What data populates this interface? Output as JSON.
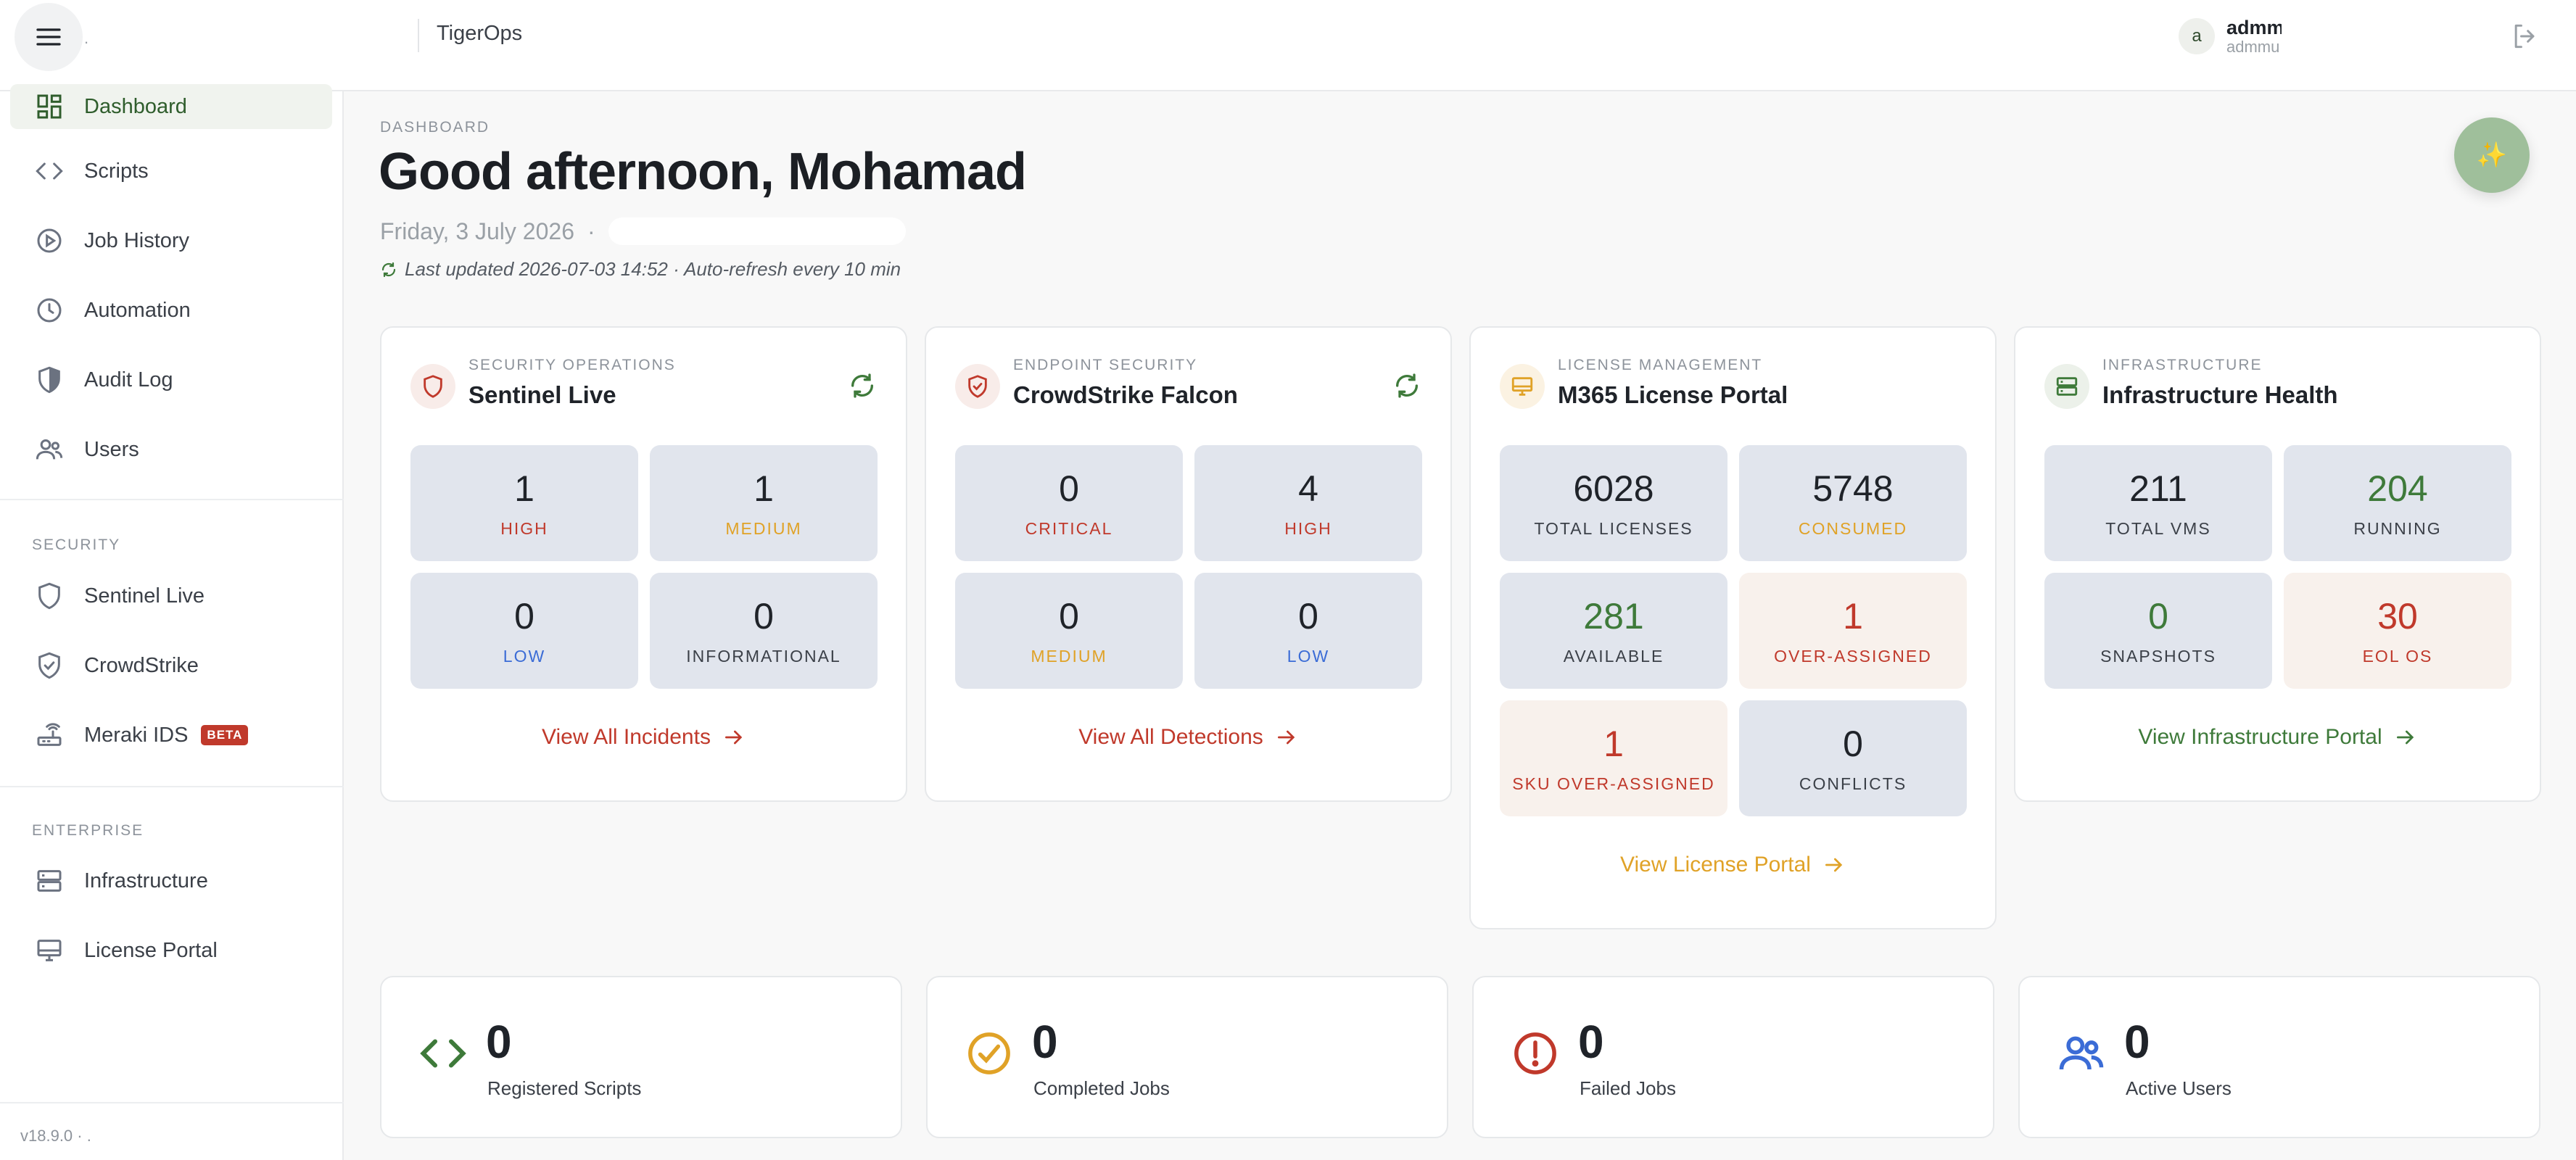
{
  "topbar": {
    "brand_mark": ".",
    "app_name": "TigerOps",
    "user": {
      "avatar_initial": "a",
      "name": "admm",
      "sub": "admmu"
    }
  },
  "sidebar": {
    "items": [
      {
        "label": "Dashboard",
        "icon": "dashboard-icon",
        "active": true
      },
      {
        "label": "Scripts",
        "icon": "code-icon"
      },
      {
        "label": "Job History",
        "icon": "play-circle-icon"
      },
      {
        "label": "Automation",
        "icon": "clock-icon"
      },
      {
        "label": "Audit Log",
        "icon": "shield-half-icon"
      },
      {
        "label": "Users",
        "icon": "users-icon"
      }
    ],
    "security_heading": "SECURITY",
    "security_items": [
      {
        "label": "Sentinel Live",
        "icon": "shield-icon"
      },
      {
        "label": "CrowdStrike",
        "icon": "shield-check-icon"
      },
      {
        "label": "Meraki IDS",
        "icon": "router-icon",
        "badge": "BETA"
      }
    ],
    "enterprise_heading": "ENTERPRISE",
    "enterprise_items": [
      {
        "label": "Infrastructure",
        "icon": "server-icon"
      },
      {
        "label": "License Portal",
        "icon": "monitor-icon"
      }
    ],
    "footer": "v18.9.0 · ."
  },
  "main": {
    "breadcrumb": "DASHBOARD",
    "greeting": "Good afternoon, Mohamad",
    "date": "Friday, 3 July 2026",
    "date_sep": "·",
    "updated": "Last updated 2026-07-03 14:52 · Auto-refresh every 10 min"
  },
  "cards": {
    "sentinel": {
      "kicker": "SECURITY OPERATIONS",
      "title": "Sentinel Live",
      "tiles": [
        {
          "value": "1",
          "label": "HIGH"
        },
        {
          "value": "1",
          "label": "MEDIUM"
        },
        {
          "value": "0",
          "label": "LOW"
        },
        {
          "value": "0",
          "label": "INFORMATIONAL"
        }
      ],
      "link": "View All Incidents"
    },
    "crowdstrike": {
      "kicker": "ENDPOINT SECURITY",
      "title": "CrowdStrike Falcon",
      "tiles": [
        {
          "value": "0",
          "label": "CRITICAL"
        },
        {
          "value": "4",
          "label": "HIGH"
        },
        {
          "value": "0",
          "label": "MEDIUM"
        },
        {
          "value": "0",
          "label": "LOW"
        }
      ],
      "link": "View All Detections"
    },
    "license": {
      "kicker": "LICENSE MANAGEMENT",
      "title": "M365 License Portal",
      "tiles": [
        {
          "value": "6028",
          "label": "TOTAL LICENSES"
        },
        {
          "value": "5748",
          "label": "CONSUMED"
        },
        {
          "value": "281",
          "label": "AVAILABLE"
        },
        {
          "value": "1",
          "label": "OVER-ASSIGNED"
        },
        {
          "value": "1",
          "label": "SKU OVER-ASSIGNED"
        },
        {
          "value": "0",
          "label": "CONFLICTS"
        }
      ],
      "link": "View License Portal"
    },
    "infra": {
      "kicker": "INFRASTRUCTURE",
      "title": "Infrastructure Health",
      "tiles": [
        {
          "value": "211",
          "label": "TOTAL VMS"
        },
        {
          "value": "204",
          "label": "RUNNING"
        },
        {
          "value": "0",
          "label": "SNAPSHOTS"
        },
        {
          "value": "30",
          "label": "EOL OS"
        }
      ],
      "link": "View Infrastructure Portal"
    }
  },
  "stats": [
    {
      "value": "0",
      "label": "Registered Scripts",
      "icon": "code-icon",
      "color": "#3e7a3a"
    },
    {
      "value": "0",
      "label": "Completed Jobs",
      "icon": "check-circle-icon",
      "color": "#e0a227"
    },
    {
      "value": "0",
      "label": "Failed Jobs",
      "icon": "alert-circle-icon",
      "color": "#c0392b"
    },
    {
      "value": "0",
      "label": "Active Users",
      "icon": "users-icon",
      "color": "#3b6cd6"
    }
  ],
  "colors": {
    "accent_green": "#3e7a3a",
    "red": "#c0392b",
    "orange": "#e0a227",
    "blue": "#3b6cd6"
  }
}
